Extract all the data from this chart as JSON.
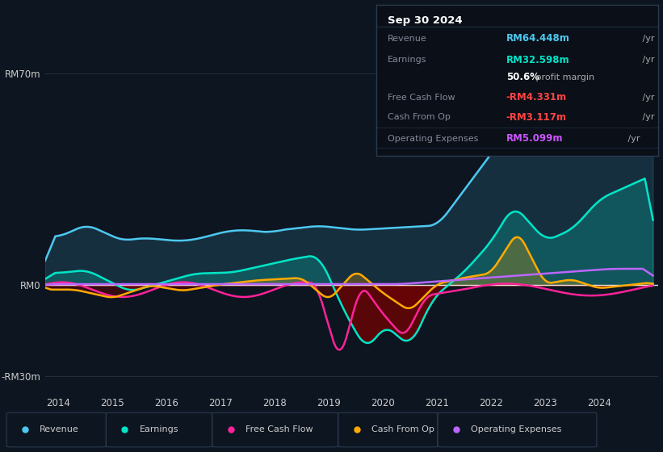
{
  "bg_color": "#0d1520",
  "chart_bg": "#0d1520",
  "title": "Sep 30 2024",
  "ylim": [
    -35,
    80
  ],
  "ytick_vals": [
    -30,
    0,
    70
  ],
  "ytick_labels": [
    "-RM30m",
    "RM0",
    "RM70m"
  ],
  "xtick_vals": [
    2014,
    2015,
    2016,
    2017,
    2018,
    2019,
    2020,
    2021,
    2022,
    2023,
    2024
  ],
  "xtick_labels": [
    "2014",
    "2015",
    "2016",
    "2017",
    "2018",
    "2019",
    "2020",
    "2021",
    "2022",
    "2023",
    "2024"
  ],
  "colors": {
    "revenue": "#4dc8f0",
    "earnings": "#00e5c8",
    "free_cash_flow": "#ff2299",
    "cash_from_op": "#ffaa00",
    "op_expenses": "#bb66ff"
  },
  "info_rows": [
    {
      "label": "Revenue",
      "value": "RM64.448m",
      "suffix": " /yr",
      "value_color": "#4dc8f0"
    },
    {
      "label": "Earnings",
      "value": "RM32.598m",
      "suffix": " /yr",
      "value_color": "#00e5c8"
    },
    {
      "label": "",
      "value": "50.6%",
      "suffix": " profit margin",
      "value_color": "#ffffff",
      "bold": true
    },
    {
      "label": "Free Cash Flow",
      "value": "-RM4.331m",
      "suffix": " /yr",
      "value_color": "#ff4444"
    },
    {
      "label": "Cash From Op",
      "value": "-RM3.117m",
      "suffix": " /yr",
      "value_color": "#ff4444"
    },
    {
      "label": "Operating Expenses",
      "value": "RM5.099m",
      "suffix": " /yr",
      "value_color": "#bb66ff"
    }
  ],
  "legend": [
    {
      "label": "Revenue",
      "color": "#4dc8f0"
    },
    {
      "label": "Earnings",
      "color": "#00e5c8"
    },
    {
      "label": "Free Cash Flow",
      "color": "#ff2299"
    },
    {
      "label": "Cash From Op",
      "color": "#ffaa00"
    },
    {
      "label": "Operating Expenses",
      "color": "#bb66ff"
    }
  ]
}
